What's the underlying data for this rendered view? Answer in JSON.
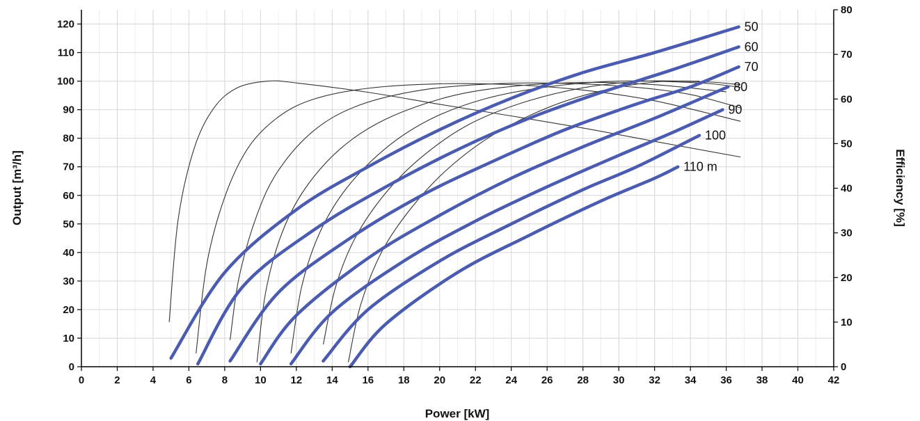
{
  "chart_data": {
    "type": "line",
    "xlabel": "Power [kW]",
    "ylabel": "Output [m³/h]",
    "y2label": "Efficiency [%]",
    "xlim": [
      0,
      42
    ],
    "ylim": [
      0,
      125
    ],
    "y2lim": [
      0,
      80
    ],
    "x_ticks": [
      "0",
      "2",
      "4",
      "6",
      "8",
      "10",
      "12",
      "14",
      "16",
      "18",
      "20",
      "22",
      "24",
      "26",
      "28",
      "30",
      "32",
      "34",
      "36",
      "38",
      "40",
      "42"
    ],
    "y_ticks": [
      "0",
      "10",
      "20",
      "30",
      "40",
      "50",
      "60",
      "70",
      "80",
      "90",
      "100",
      "110",
      "120"
    ],
    "y2_ticks": [
      "0",
      "10",
      "20",
      "30",
      "40",
      "50",
      "60",
      "70",
      "80"
    ],
    "grid": true,
    "colors": {
      "output": "#4a5bb0",
      "efficiency": "#333333",
      "grid": "#d6d6d6"
    },
    "output_series": [
      {
        "label": "50",
        "points": [
          [
            5.0,
            3
          ],
          [
            8,
            33
          ],
          [
            12,
            55
          ],
          [
            16,
            70
          ],
          [
            20,
            83
          ],
          [
            24,
            94
          ],
          [
            28,
            103
          ],
          [
            32,
            110
          ],
          [
            36.7,
            119
          ]
        ]
      },
      {
        "label": "60",
        "points": [
          [
            6.5,
            1
          ],
          [
            9,
            28
          ],
          [
            13,
            48
          ],
          [
            17,
            63
          ],
          [
            21,
            76
          ],
          [
            25,
            87
          ],
          [
            29,
            96
          ],
          [
            33,
            104
          ],
          [
            36.7,
            112
          ]
        ]
      },
      {
        "label": "70",
        "points": [
          [
            8.3,
            2
          ],
          [
            11,
            26
          ],
          [
            15,
            45
          ],
          [
            19,
            60
          ],
          [
            23,
            72
          ],
          [
            27,
            83
          ],
          [
            31,
            92
          ],
          [
            34,
            98
          ],
          [
            36.7,
            105
          ]
        ]
      },
      {
        "label": "80",
        "points": [
          [
            10.0,
            1
          ],
          [
            12,
            18
          ],
          [
            16,
            38
          ],
          [
            20,
            53
          ],
          [
            24,
            66
          ],
          [
            28,
            77
          ],
          [
            32,
            87
          ],
          [
            36.1,
            98
          ]
        ]
      },
      {
        "label": "90",
        "points": [
          [
            11.7,
            1
          ],
          [
            14,
            19
          ],
          [
            18,
            37
          ],
          [
            22,
            51
          ],
          [
            26,
            63
          ],
          [
            30,
            74
          ],
          [
            33,
            82
          ],
          [
            35.8,
            90
          ]
        ]
      },
      {
        "label": "100",
        "points": [
          [
            13.5,
            2
          ],
          [
            16,
            20
          ],
          [
            20,
            37
          ],
          [
            24,
            50
          ],
          [
            28,
            62
          ],
          [
            31,
            70
          ],
          [
            34.5,
            81
          ]
        ]
      },
      {
        "label": "110 m",
        "points": [
          [
            15.0,
            0
          ],
          [
            17,
            15
          ],
          [
            21,
            33
          ],
          [
            25,
            46
          ],
          [
            29,
            58
          ],
          [
            32,
            66
          ],
          [
            33.3,
            70
          ]
        ]
      }
    ],
    "efficiency_series": [
      {
        "points": [
          [
            4.9,
            10
          ],
          [
            5.4,
            33
          ],
          [
            6.3,
            49
          ],
          [
            7.4,
            58
          ],
          [
            8.7,
            62.5
          ],
          [
            10.4,
            64
          ],
          [
            12,
            63.6
          ],
          [
            16,
            61.5
          ],
          [
            20,
            58.8
          ],
          [
            24,
            56.2
          ],
          [
            28,
            53.5
          ],
          [
            32,
            50.5
          ],
          [
            36.8,
            47
          ]
        ]
      },
      {
        "points": [
          [
            6.4,
            3
          ],
          [
            7.0,
            23
          ],
          [
            8.0,
            38
          ],
          [
            9.3,
            49
          ],
          [
            11,
            56
          ],
          [
            13,
            60
          ],
          [
            16,
            62.4
          ],
          [
            20,
            63.4
          ],
          [
            24,
            63.2
          ],
          [
            28,
            62
          ],
          [
            32,
            59.6
          ],
          [
            36.8,
            55
          ]
        ]
      },
      {
        "points": [
          [
            8.3,
            6
          ],
          [
            8.8,
            20
          ],
          [
            9.8,
            34
          ],
          [
            11,
            44
          ],
          [
            13,
            53
          ],
          [
            15.5,
            58.6
          ],
          [
            19,
            62
          ],
          [
            23,
            63.4
          ],
          [
            27,
            63.5
          ],
          [
            31,
            62.6
          ],
          [
            34,
            61
          ],
          [
            36.8,
            58
          ]
        ]
      },
      {
        "points": [
          [
            9.8,
            1
          ],
          [
            10.3,
            17
          ],
          [
            11.2,
            30
          ],
          [
            12.5,
            40
          ],
          [
            14.5,
            49
          ],
          [
            17,
            55.5
          ],
          [
            20.5,
            60.5
          ],
          [
            24,
            62.8
          ],
          [
            28,
            63.7
          ],
          [
            32,
            63.2
          ],
          [
            36,
            61.6
          ]
        ]
      },
      {
        "points": [
          [
            11.7,
            3
          ],
          [
            12.3,
            18
          ],
          [
            13.3,
            30
          ],
          [
            14.8,
            40
          ],
          [
            17,
            49
          ],
          [
            19.5,
            55.5
          ],
          [
            22.5,
            60
          ],
          [
            26,
            62.7
          ],
          [
            30,
            64
          ],
          [
            34.5,
            63.6
          ],
          [
            36.8,
            62.6
          ]
        ]
      },
      {
        "points": [
          [
            13.5,
            5
          ],
          [
            14.2,
            18
          ],
          [
            15.3,
            29
          ],
          [
            17,
            39
          ],
          [
            19,
            47
          ],
          [
            21.5,
            54
          ],
          [
            24.5,
            59
          ],
          [
            28,
            62.5
          ],
          [
            31.5,
            64
          ],
          [
            35,
            63.8
          ],
          [
            36.8,
            63.2
          ]
        ]
      },
      {
        "points": [
          [
            14.9,
            1
          ],
          [
            15.6,
            14
          ],
          [
            16.8,
            26
          ],
          [
            18.5,
            36
          ],
          [
            20.5,
            44.5
          ],
          [
            23,
            52
          ],
          [
            26,
            58
          ],
          [
            29,
            61.8
          ],
          [
            32,
            63.8
          ],
          [
            34.5,
            64
          ]
        ]
      }
    ]
  }
}
